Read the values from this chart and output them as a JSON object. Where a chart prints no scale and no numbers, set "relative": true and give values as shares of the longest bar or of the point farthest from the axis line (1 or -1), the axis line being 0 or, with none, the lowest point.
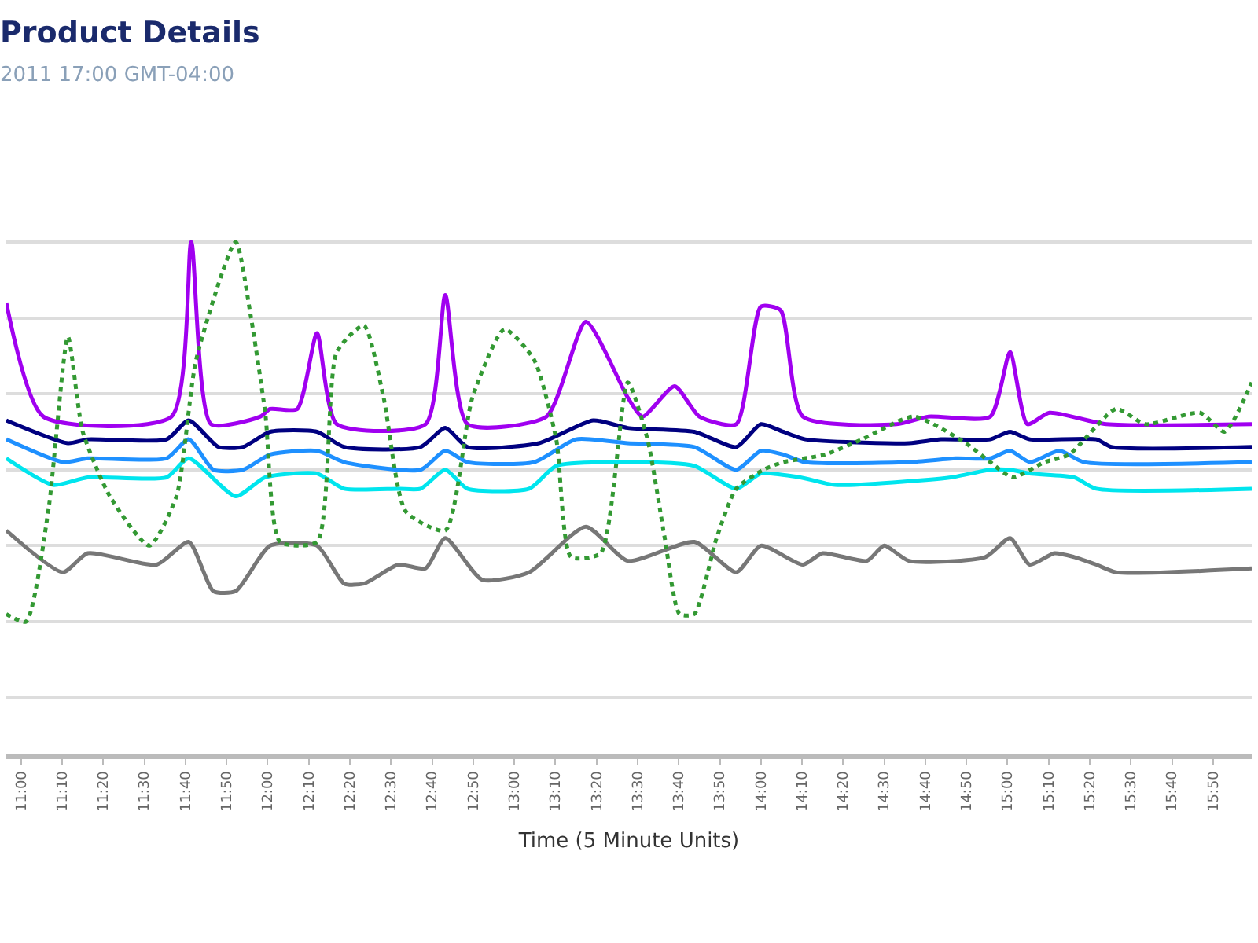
{
  "chart_data": {
    "type": "line",
    "title": "Product Details",
    "subtitle": "2011 17:00 GMT-04:00",
    "xlabel": "Time (5 Minute Units)",
    "relative": true,
    "grid": "y",
    "legend": false,
    "marker": "none",
    "xlim": [
      10.94,
      15.99
    ],
    "xticks": [
      {
        "value": 11.0,
        "label": "11:00"
      },
      {
        "value": 11.1667,
        "label": "11:10"
      },
      {
        "value": 11.3333,
        "label": "11:20"
      },
      {
        "value": 11.5,
        "label": "11:30"
      },
      {
        "value": 11.6667,
        "label": "11:40"
      },
      {
        "value": 11.8333,
        "label": "11:50"
      },
      {
        "value": 12.0,
        "label": "12:00"
      },
      {
        "value": 12.1667,
        "label": "12:10"
      },
      {
        "value": 12.3333,
        "label": "12:20"
      },
      {
        "value": 12.5,
        "label": "12:30"
      },
      {
        "value": 12.6667,
        "label": "12:40"
      },
      {
        "value": 12.8333,
        "label": "12:50"
      },
      {
        "value": 13.0,
        "label": "13:00"
      },
      {
        "value": 13.1667,
        "label": "13:10"
      },
      {
        "value": 13.3333,
        "label": "13:20"
      },
      {
        "value": 13.5,
        "label": "13:30"
      },
      {
        "value": 13.6667,
        "label": "13:40"
      },
      {
        "value": 13.8333,
        "label": "13:50"
      },
      {
        "value": 14.0,
        "label": "14:00"
      },
      {
        "value": 14.1667,
        "label": "14:10"
      },
      {
        "value": 14.3333,
        "label": "14:20"
      },
      {
        "value": 14.5,
        "label": "14:30"
      },
      {
        "value": 14.6667,
        "label": "14:40"
      },
      {
        "value": 14.8333,
        "label": "14:50"
      },
      {
        "value": 15.0,
        "label": "15:00"
      },
      {
        "value": 15.1667,
        "label": "15:10"
      },
      {
        "value": 15.3333,
        "label": "15:20"
      },
      {
        "value": 15.5,
        "label": "15:30"
      },
      {
        "value": 15.6667,
        "label": "15:40"
      },
      {
        "value": 15.8333,
        "label": "15:50"
      }
    ],
    "series": [
      {
        "color": "#a000f0",
        "x": [
          10.94,
          11.09,
          11.61,
          11.69,
          11.77,
          11.97,
          12.01,
          12.12,
          12.2,
          12.28,
          12.64,
          12.72,
          12.81,
          13.13,
          13.29,
          13.46,
          13.52,
          13.65,
          13.75,
          13.9,
          14.0,
          14.08,
          14.17,
          14.55,
          14.68,
          14.93,
          15.01,
          15.08,
          15.17,
          15.4,
          15.99
        ],
        "values": [
          0.84,
          0.54,
          0.54,
          1.0,
          0.52,
          0.54,
          0.56,
          0.56,
          0.76,
          0.52,
          0.52,
          0.86,
          0.52,
          0.54,
          0.79,
          0.59,
          0.54,
          0.62,
          0.54,
          0.52,
          0.83,
          0.82,
          0.54,
          0.52,
          0.54,
          0.54,
          0.71,
          0.52,
          0.55,
          0.52,
          0.52
        ]
      },
      {
        "color": "#000080",
        "x": [
          10.94,
          11.19,
          11.27,
          11.59,
          11.68,
          11.8,
          11.9,
          12.01,
          12.2,
          12.31,
          12.62,
          12.72,
          12.81,
          13.1,
          13.32,
          13.46,
          13.73,
          13.9,
          14.0,
          14.09,
          14.18,
          14.6,
          14.73,
          14.93,
          15.01,
          15.09,
          15.36,
          15.42,
          15.99
        ],
        "values": [
          0.53,
          0.47,
          0.48,
          0.48,
          0.53,
          0.46,
          0.46,
          0.5,
          0.5,
          0.46,
          0.46,
          0.51,
          0.46,
          0.47,
          0.53,
          0.51,
          0.5,
          0.46,
          0.52,
          0.5,
          0.48,
          0.47,
          0.48,
          0.48,
          0.5,
          0.48,
          0.48,
          0.46,
          0.46
        ]
      },
      {
        "color": "#1e90ff",
        "x": [
          10.94,
          11.17,
          11.27,
          11.59,
          11.68,
          11.78,
          11.9,
          12.01,
          12.2,
          12.31,
          12.62,
          12.72,
          12.81,
          13.08,
          13.25,
          13.46,
          13.73,
          13.9,
          14.0,
          14.09,
          14.18,
          14.6,
          14.79,
          14.93,
          15.01,
          15.09,
          15.21,
          15.31,
          15.99
        ],
        "values": [
          0.48,
          0.42,
          0.43,
          0.43,
          0.48,
          0.4,
          0.4,
          0.44,
          0.45,
          0.42,
          0.4,
          0.45,
          0.42,
          0.42,
          0.48,
          0.47,
          0.46,
          0.4,
          0.45,
          0.44,
          0.42,
          0.42,
          0.43,
          0.43,
          0.45,
          0.42,
          0.45,
          0.42,
          0.42
        ]
      },
      {
        "color": "#00e5ee",
        "x": [
          10.94,
          11.13,
          11.27,
          11.59,
          11.68,
          11.87,
          11.99,
          12.2,
          12.31,
          12.53,
          12.62,
          12.72,
          12.81,
          13.06,
          13.17,
          13.46,
          13.73,
          13.9,
          14.0,
          14.16,
          14.3,
          14.77,
          14.93,
          15.01,
          15.09,
          15.27,
          15.36,
          15.99
        ],
        "values": [
          0.43,
          0.36,
          0.38,
          0.38,
          0.43,
          0.33,
          0.38,
          0.39,
          0.35,
          0.35,
          0.35,
          0.4,
          0.35,
          0.35,
          0.41,
          0.42,
          0.41,
          0.35,
          0.39,
          0.38,
          0.36,
          0.38,
          0.4,
          0.4,
          0.39,
          0.38,
          0.35,
          0.35
        ]
      },
      {
        "color": "#777777",
        "x": [
          10.94,
          11.17,
          11.27,
          11.55,
          11.68,
          11.78,
          11.87,
          12.01,
          12.2,
          12.31,
          12.39,
          12.53,
          12.64,
          12.72,
          12.87,
          13.06,
          13.29,
          13.46,
          13.73,
          13.9,
          14.0,
          14.17,
          14.25,
          14.43,
          14.5,
          14.6,
          14.91,
          15.01,
          15.09,
          15.19,
          15.27,
          15.36,
          15.44,
          15.99
        ],
        "values": [
          0.24,
          0.13,
          0.18,
          0.15,
          0.21,
          0.08,
          0.08,
          0.2,
          0.2,
          0.1,
          0.1,
          0.15,
          0.14,
          0.22,
          0.11,
          0.13,
          0.25,
          0.16,
          0.21,
          0.13,
          0.2,
          0.15,
          0.18,
          0.16,
          0.2,
          0.16,
          0.17,
          0.22,
          0.15,
          0.18,
          0.17,
          0.15,
          0.13,
          0.14
        ]
      },
      {
        "color": "#339933",
        "line_style": "dotted",
        "x": [
          10.94,
          11.02,
          11.11,
          11.19,
          11.25,
          11.36,
          11.52,
          11.63,
          11.71,
          11.87,
          11.93,
          11.99,
          12.05,
          12.2,
          12.28,
          12.39,
          12.47,
          12.56,
          12.72,
          12.83,
          12.96,
          13.08,
          13.17,
          13.23,
          13.35,
          13.46,
          13.54,
          13.61,
          13.67,
          13.73,
          13.82,
          13.9,
          14.01,
          14.09,
          14.26,
          14.41,
          14.62,
          14.83,
          14.93,
          15.02,
          15.15,
          15.25,
          15.44,
          15.56,
          15.78,
          15.88,
          15.99
        ],
        "values": [
          0.02,
          0.0,
          0.29,
          0.75,
          0.5,
          0.33,
          0.2,
          0.33,
          0.69,
          1.0,
          0.81,
          0.55,
          0.21,
          0.21,
          0.71,
          0.78,
          0.59,
          0.29,
          0.24,
          0.59,
          0.77,
          0.69,
          0.48,
          0.17,
          0.18,
          0.63,
          0.48,
          0.22,
          0.02,
          0.02,
          0.22,
          0.35,
          0.4,
          0.42,
          0.44,
          0.48,
          0.54,
          0.47,
          0.42,
          0.38,
          0.42,
          0.44,
          0.56,
          0.52,
          0.55,
          0.5,
          0.63
        ]
      }
    ]
  }
}
